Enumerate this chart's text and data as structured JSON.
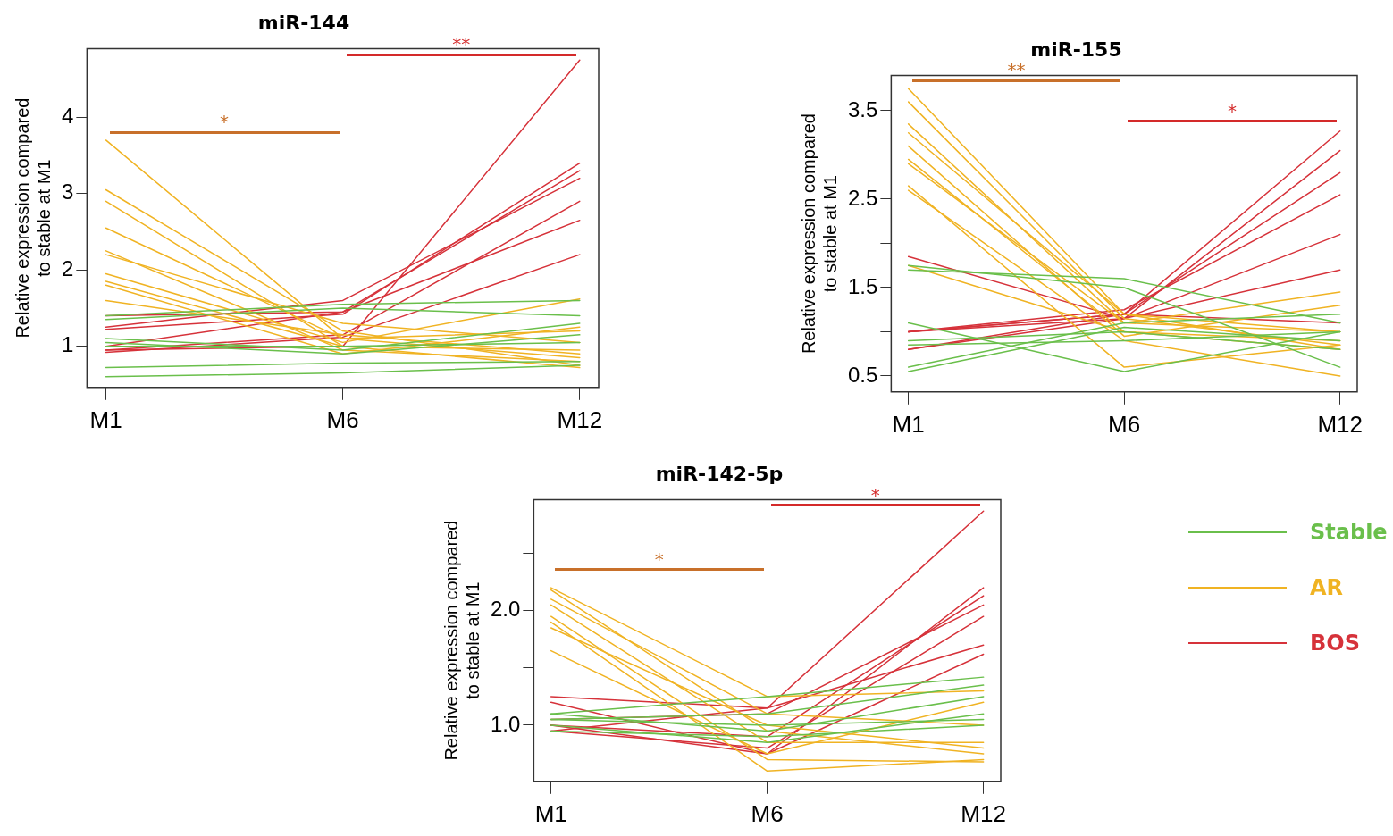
{
  "chart_data": [
    {
      "type": "line",
      "title": "miR-144",
      "ylabel": "Relative expression compared\nto stable at M1",
      "categories": [
        "M1",
        "M6",
        "M12"
      ],
      "ylim": [
        0.46,
        4.9
      ],
      "yticks": [
        1,
        2,
        3,
        4
      ],
      "grid": false,
      "marker": "none",
      "line_style": "solid",
      "legend": "right",
      "annotations": [
        "*",
        "**"
      ],
      "series": [
        {
          "name": "Stable",
          "color": "#6abf4b",
          "values": [
            1.4,
            1.55,
            1.6
          ]
        },
        {
          "color": "#6abf4b",
          "values": [
            1.35,
            1.5,
            1.4
          ]
        },
        {
          "color": "#6abf4b",
          "values": [
            1.1,
            0.95,
            1.3
          ]
        },
        {
          "color": "#6abf4b",
          "values": [
            1.05,
            0.9,
            1.15
          ]
        },
        {
          "color": "#6abf4b",
          "values": [
            1.0,
            1.0,
            1.05
          ]
        },
        {
          "color": "#6abf4b",
          "values": [
            0.72,
            0.78,
            0.8
          ]
        },
        {
          "color": "#6abf4b",
          "values": [
            0.6,
            0.65,
            0.75
          ]
        },
        {
          "name": "AR",
          "color": "#f0b323",
          "values": [
            3.7,
            1.1,
            0.85
          ]
        },
        {
          "color": "#f0b323",
          "values": [
            3.05,
            1.2,
            0.75
          ]
        },
        {
          "color": "#f0b323",
          "values": [
            2.9,
            1.0,
            0.95
          ]
        },
        {
          "color": "#f0b323",
          "values": [
            2.55,
            1.1,
            1.2
          ]
        },
        {
          "color": "#f0b323",
          "values": [
            2.25,
            0.95,
            0.8
          ]
        },
        {
          "color": "#f0b323",
          "values": [
            2.2,
            1.3,
            1.05
          ]
        },
        {
          "color": "#f0b323",
          "values": [
            1.95,
            1.05,
            1.62
          ]
        },
        {
          "color": "#f0b323",
          "values": [
            1.85,
            1.0,
            0.72
          ]
        },
        {
          "color": "#f0b323",
          "values": [
            1.8,
            0.9,
            1.25
          ]
        },
        {
          "color": "#f0b323",
          "values": [
            1.6,
            1.15,
            0.9
          ]
        },
        {
          "name": "BOS",
          "color": "#d6323a",
          "values": [
            0.95,
            1.0,
            4.75
          ]
        },
        {
          "color": "#d6323a",
          "values": [
            1.22,
            1.42,
            3.4
          ]
        },
        {
          "color": "#d6323a",
          "values": [
            1.0,
            1.45,
            3.3
          ]
        },
        {
          "color": "#d6323a",
          "values": [
            1.25,
            1.6,
            3.2
          ]
        },
        {
          "color": "#d6323a",
          "values": [
            0.95,
            1.15,
            2.9
          ]
        },
        {
          "color": "#d6323a",
          "values": [
            1.4,
            1.45,
            2.65
          ]
        },
        {
          "color": "#d6323a",
          "values": [
            0.92,
            1.12,
            2.2
          ]
        }
      ]
    },
    {
      "type": "line",
      "title": "miR-155",
      "ylabel": "Relative expression compared\nto stable at M1",
      "categories": [
        "M1",
        "M6",
        "M12"
      ],
      "ylim": [
        0.32,
        3.9
      ],
      "yticks": [
        0.5,
        {
          "value": 1,
          "label": null
        },
        1.5,
        {
          "value": 2,
          "label": null
        },
        2.5,
        {
          "value": 3,
          "label": null
        },
        3.5
      ],
      "grid": false,
      "marker": "none",
      "line_style": "solid",
      "annotations": [
        "**",
        "*"
      ],
      "series": [
        {
          "color": "#6abf4b",
          "values": [
            1.7,
            1.6,
            1.1
          ]
        },
        {
          "color": "#6abf4b",
          "values": [
            1.75,
            1.5,
            0.6
          ]
        },
        {
          "color": "#6abf4b",
          "values": [
            1.1,
            0.55,
            1.0
          ]
        },
        {
          "color": "#6abf4b",
          "values": [
            0.6,
            1.1,
            1.2
          ]
        },
        {
          "color": "#6abf4b",
          "values": [
            0.55,
            1.05,
            0.9
          ]
        },
        {
          "color": "#6abf4b",
          "values": [
            0.85,
            0.9,
            1.0
          ]
        },
        {
          "color": "#6abf4b",
          "values": [
            0.9,
            1.0,
            0.8
          ]
        },
        {
          "color": "#f0b323",
          "values": [
            3.75,
            1.2,
            1.0
          ]
        },
        {
          "color": "#f0b323",
          "values": [
            3.6,
            1.15,
            0.85
          ]
        },
        {
          "color": "#f0b323",
          "values": [
            3.35,
            1.1,
            1.45
          ]
        },
        {
          "color": "#f0b323",
          "values": [
            3.25,
            1.2,
            0.8
          ]
        },
        {
          "color": "#f0b323",
          "values": [
            3.1,
            0.95,
            1.3
          ]
        },
        {
          "color": "#f0b323",
          "values": [
            2.95,
            1.0,
            0.9
          ]
        },
        {
          "color": "#f0b323",
          "values": [
            2.9,
            1.1,
            1.0
          ]
        },
        {
          "color": "#f0b323",
          "values": [
            2.65,
            0.6,
            0.85
          ]
        },
        {
          "color": "#f0b323",
          "values": [
            2.6,
            0.9,
            0.5
          ]
        },
        {
          "color": "#f0b323",
          "values": [
            1.75,
            1.0,
            0.8
          ]
        },
        {
          "color": "#d6323a",
          "values": [
            1.0,
            1.2,
            3.27
          ]
        },
        {
          "color": "#d6323a",
          "values": [
            1.0,
            1.15,
            3.05
          ]
        },
        {
          "color": "#d6323a",
          "values": [
            0.8,
            1.2,
            2.8
          ]
        },
        {
          "color": "#d6323a",
          "values": [
            1.0,
            1.25,
            2.55
          ]
        },
        {
          "color": "#d6323a",
          "values": [
            0.8,
            1.15,
            2.1
          ]
        },
        {
          "color": "#d6323a",
          "values": [
            1.85,
            1.15,
            1.7
          ]
        },
        {
          "color": "#d6323a",
          "values": [
            1.0,
            1.2,
            1.1
          ]
        }
      ]
    },
    {
      "type": "line",
      "title": "miR-142-5p",
      "ylabel": "Relative expression compared\nto stable at M1",
      "categories": [
        "M1",
        "M6",
        "M12"
      ],
      "ylim": [
        0.51,
        2.97
      ],
      "yticks": [
        {
          "value": 1,
          "label": "1.0"
        },
        {
          "value": 1.5,
          "label": null
        },
        {
          "value": 2,
          "label": "2.0"
        },
        {
          "value": 2.5,
          "label": null
        }
      ],
      "grid": false,
      "marker": "none",
      "line_style": "solid",
      "annotations": [
        "*",
        "*"
      ],
      "series": [
        {
          "color": "#6abf4b",
          "values": [
            1.1,
            1.25,
            1.42
          ]
        },
        {
          "color": "#6abf4b",
          "values": [
            1.05,
            1.1,
            1.35
          ]
        },
        {
          "color": "#6abf4b",
          "values": [
            1.1,
            0.95,
            1.25
          ]
        },
        {
          "color": "#6abf4b",
          "values": [
            1.0,
            0.85,
            1.1
          ]
        },
        {
          "color": "#6abf4b",
          "values": [
            1.05,
            1.0,
            1.05
          ]
        },
        {
          "color": "#6abf4b",
          "values": [
            0.95,
            0.9,
            1.0
          ]
        },
        {
          "color": "#f0b323",
          "values": [
            2.2,
            1.25,
            1.3
          ]
        },
        {
          "color": "#f0b323",
          "values": [
            2.18,
            0.95,
            0.75
          ]
        },
        {
          "color": "#f0b323",
          "values": [
            2.1,
            1.1,
            1.0
          ]
        },
        {
          "color": "#f0b323",
          "values": [
            2.05,
            0.85,
            0.85
          ]
        },
        {
          "color": "#f0b323",
          "values": [
            1.95,
            0.7,
            0.68
          ]
        },
        {
          "color": "#f0b323",
          "values": [
            1.9,
            0.6,
            0.7
          ]
        },
        {
          "color": "#f0b323",
          "values": [
            1.85,
            1.0,
            0.8
          ]
        },
        {
          "color": "#f0b323",
          "values": [
            1.65,
            0.75,
            1.2
          ]
        },
        {
          "color": "#d6323a",
          "values": [
            0.95,
            1.15,
            2.87
          ]
        },
        {
          "color": "#d6323a",
          "values": [
            1.0,
            0.75,
            2.2
          ]
        },
        {
          "color": "#d6323a",
          "values": [
            1.0,
            0.9,
            2.13
          ]
        },
        {
          "color": "#d6323a",
          "values": [
            1.05,
            1.1,
            2.05
          ]
        },
        {
          "color": "#d6323a",
          "values": [
            0.95,
            0.8,
            1.95
          ]
        },
        {
          "color": "#d6323a",
          "values": [
            1.25,
            1.15,
            1.7
          ]
        },
        {
          "color": "#d6323a",
          "values": [
            1.2,
            0.75,
            1.62
          ]
        }
      ]
    }
  ]
}
